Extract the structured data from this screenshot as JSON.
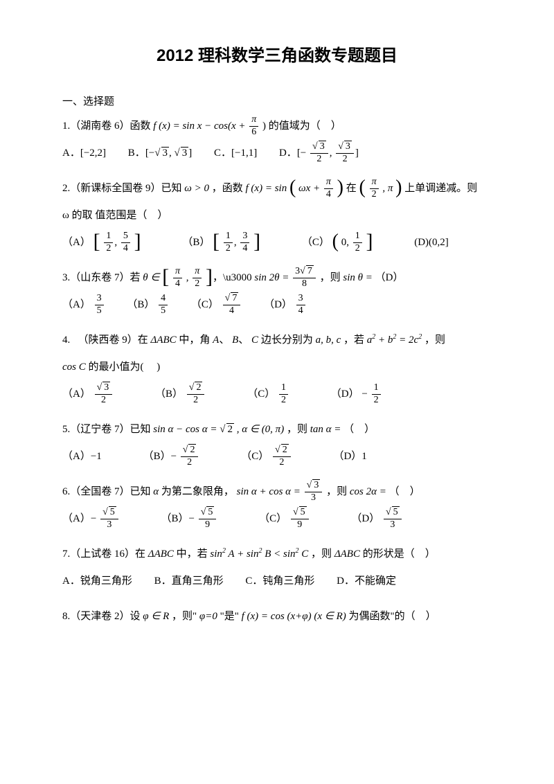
{
  "title": "2012 理科数学三角函数专题题目",
  "section1": "一、选择题",
  "problems": {
    "p1": {
      "stem_a": "1.（湖南卷 6）函数 ",
      "stem_b": " 的值域为（　）",
      "fx": "f (x) = sin x − cos(x + ",
      "fx_close": ")",
      "optA_label": "A．",
      "optA": "[−2,2]",
      "optB_label": "B．",
      "optC_label": "C．",
      "optC": "[−1,1]",
      "optD_label": "D．",
      "pi": "π",
      "six": "6",
      "sqrt3": "3",
      "two": "2"
    },
    "p2": {
      "stem_a": "2.（新课标全国卷 9）已知",
      "omega_gt": "ω > 0",
      "stem_b": "，函数",
      "fx": "f (x) = sin",
      "omega_x": "ωx + ",
      "pi4_num": "π",
      "pi4_den": "4",
      "stem_c": "在",
      "pi2_num": "π",
      "pi2_den": "2",
      "comma_pi": ", π",
      "stem_d": "上单调递减。则",
      "stem_e": "ω 的取 值范围是（　）",
      "A": "（A）",
      "B": "（B）",
      "C": "（C）",
      "D": "(D)",
      "half_num": "1",
      "half_den": "2",
      "fivefour_num": "5",
      "fivefour_den": "4",
      "threefour_num": "3",
      "threefour_den": "4",
      "zero": "0,",
      "zero2": "(0,2]"
    },
    "p3": {
      "stem_a": "3.（山东卷 7）若",
      "theta_in": "θ ∈",
      "pi4_num": "π",
      "pi4_den": "4",
      "pi2_num": "π",
      "pi2_den": "2",
      "comma": ",",
      "sin2theta": "sin 2θ = ",
      "three_sqrt7_num": "3√7",
      "eight": "8",
      "stem_b": "，则",
      "sintheta": "sin θ =",
      "stem_c": "（D）",
      "A": "（A）",
      "B": "（B）",
      "C": "（C）",
      "D": "（D）",
      "three": "3",
      "five": "5",
      "four": "4",
      "sqrt7": "7"
    },
    "p4": {
      "stem_a": "4. 　（陕西卷 9）在",
      "tri": "ΔABC",
      "stem_b": "中，角",
      "A_": "A",
      "dot1": "、",
      "B_": "B",
      "dot2": "、",
      "C_": "C",
      "stem_c": "边长分别为",
      "abc": "a, b, c",
      "stem_d": "，若",
      "eq": "a² + b² = 2c²",
      "stem_e": "，则",
      "cosC": "cos C",
      "stem_f": " 的最小值为(　 )",
      "A": "（A）",
      "B": "（B）",
      "C": "（C）",
      "D": "（D）",
      "sqrt3": "3",
      "sqrt2": "2",
      "two": "2",
      "one": "1",
      "neg": "−"
    },
    "p5": {
      "stem_a": "5.（辽宁卷 7）已知",
      "eq": "sin α − cos α = ",
      "sqrt2v": "2",
      "alpha_in": ", α ∈ (0, π)",
      "stem_b": "，则",
      "tan": "tan α =",
      "stem_c": "（　）",
      "A": "（A）",
      "Av": "−1",
      "B": "（B）",
      "neg": "−",
      "C": "（C）",
      "D": "（D）",
      "Dv": "1",
      "two": "2"
    },
    "p6": {
      "stem_a": "6.（全国卷 7）已知",
      "alpha": "α",
      "stem_b": "为第二象限角，",
      "eq": "sin α + cos α = ",
      "sqrt3": "3",
      "three": "3",
      "stem_c": "，则",
      "cos2a": "cos 2α =",
      "stem_d": "（　）",
      "A": "（A）",
      "B": "（B）",
      "C": "（C）",
      "D": "（D）",
      "neg": "−",
      "sqrt5": "5",
      "nine": "9"
    },
    "p7": {
      "stem_a": "7.（上试卷 16）在",
      "tri": "ΔABC",
      "stem_b": "中，若",
      "ineq": "sin² A + sin² B < sin² C",
      "stem_c": "，则",
      "tri2": "ΔABC",
      "stem_d": "的形状是（　）",
      "optA": "A．锐角三角形",
      "optB": "B．直角三角形",
      "optC": "C．钝角三角形",
      "optD": "D．不能确定"
    },
    "p8": {
      "stem_a": "8.（天津卷 2）设",
      "phi_in": "φ ∈ R",
      "stem_b": "，则\"",
      "phi0": "φ=0",
      "stem_c": "\"是\"",
      "fx": "f (x) = cos (x+φ)",
      "xr": "(x ∈ R)",
      "stem_d": "为偶函数\"的（　）"
    }
  }
}
